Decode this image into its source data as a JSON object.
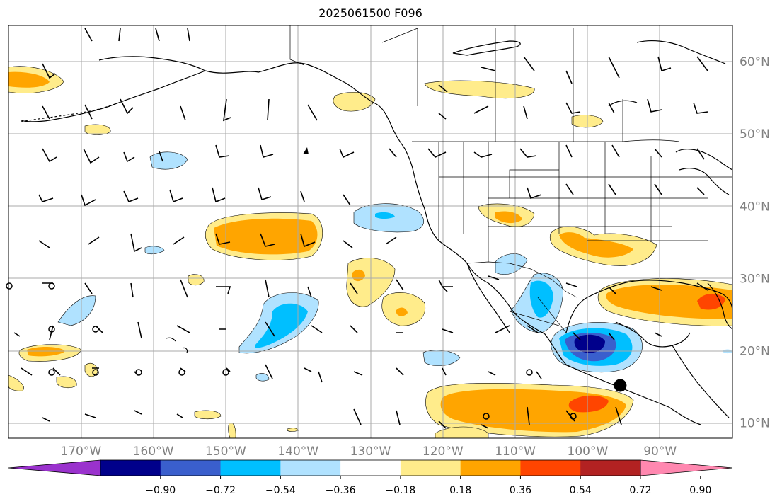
{
  "title": "2025061500 F096",
  "grid": {
    "lat_labels": [
      "60°N",
      "50°N",
      "40°N",
      "30°N",
      "20°N",
      "10°N"
    ],
    "lat_values": [
      60,
      50,
      40,
      30,
      20,
      10
    ],
    "lon_labels": [
      "170°W",
      "160°W",
      "150°W",
      "140°W",
      "130°W",
      "120°W",
      "110°W",
      "100°W",
      "90°W"
    ],
    "lon_values": [
      -170,
      -160,
      -150,
      -140,
      -130,
      -120,
      -110,
      -100,
      -90
    ]
  },
  "colorbar": {
    "ticks": [
      "−0.90",
      "−0.72",
      "−0.54",
      "−0.36",
      "−0.18",
      "0.18",
      "0.36",
      "0.54",
      "0.72",
      "0.90"
    ],
    "colors": [
      "#9a32cd",
      "#00008b",
      "#3a5fcd",
      "#00bfff",
      "#b0e2ff",
      "#ffffff",
      "#ffec8b",
      "#ffa500",
      "#ff4500",
      "#b22222",
      "#ff88b0"
    ]
  },
  "colors": {
    "ocean": "#ffffff",
    "coast": "#000000",
    "grid": "#aaaaaa",
    "marker": "#000000"
  },
  "marker": {
    "name": "station-marker",
    "lon": -95.5,
    "lat": 15.2
  }
}
